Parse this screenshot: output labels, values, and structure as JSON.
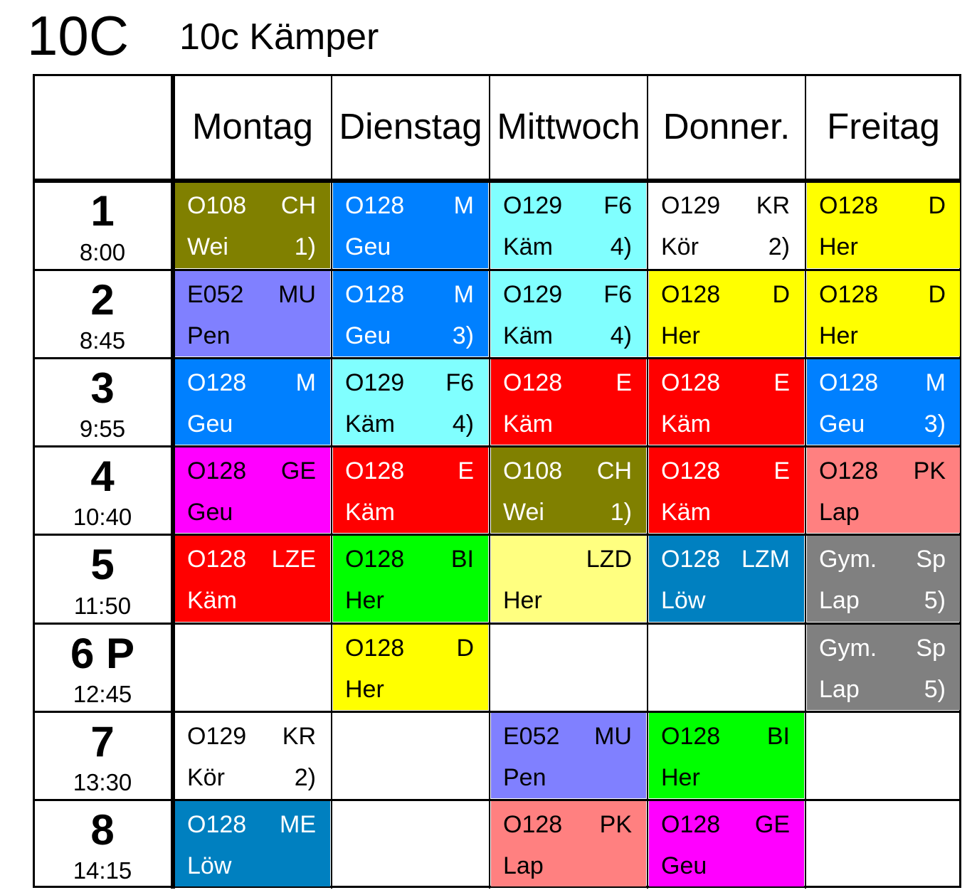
{
  "header": {
    "class_code": "10C",
    "class_name": "10c Kämper"
  },
  "days": [
    "Montag",
    "Dienstag",
    "Mittwoch",
    "Donner.",
    "Freitag"
  ],
  "periods": [
    {
      "label": "1",
      "time": "8:00"
    },
    {
      "label": "2",
      "time": "8:45"
    },
    {
      "label": "3",
      "time": "9:55"
    },
    {
      "label": "4",
      "time": "10:40"
    },
    {
      "label": "5",
      "time": "11:50"
    },
    {
      "label": "6 P",
      "time": "12:45"
    },
    {
      "label": "7",
      "time": "13:30"
    },
    {
      "label": "8",
      "time": "14:15"
    }
  ],
  "schedule": [
    [
      {
        "room": "O108",
        "subject": "CH",
        "teacher": "Wei",
        "note": "1)",
        "color": "#808000",
        "text_color": "#ffffff"
      },
      {
        "room": "O128",
        "subject": "M",
        "teacher": "Geu",
        "note": "",
        "color": "#0080ff",
        "text_color": "#ffffff"
      },
      {
        "room": "O129",
        "subject": "F6",
        "teacher": "Käm",
        "note": "4)",
        "color": "#80ffff",
        "text_color": "#000000"
      },
      {
        "room": "O129",
        "subject": "KR",
        "teacher": "Kör",
        "note": "2)",
        "color": "#ffffff",
        "text_color": "#000000"
      },
      {
        "room": "O128",
        "subject": "D",
        "teacher": "Her",
        "note": "",
        "color": "#ffff00",
        "text_color": "#000000"
      }
    ],
    [
      {
        "room": "E052",
        "subject": "MU",
        "teacher": "Pen",
        "note": "",
        "color": "#8080ff",
        "text_color": "#000000"
      },
      {
        "room": "O128",
        "subject": "M",
        "teacher": "Geu",
        "note": "3)",
        "color": "#0080ff",
        "text_color": "#ffffff"
      },
      {
        "room": "O129",
        "subject": "F6",
        "teacher": "Käm",
        "note": "4)",
        "color": "#80ffff",
        "text_color": "#000000"
      },
      {
        "room": "O128",
        "subject": "D",
        "teacher": "Her",
        "note": "",
        "color": "#ffff00",
        "text_color": "#000000"
      },
      {
        "room": "O128",
        "subject": "D",
        "teacher": "Her",
        "note": "",
        "color": "#ffff00",
        "text_color": "#000000"
      }
    ],
    [
      {
        "room": "O128",
        "subject": "M",
        "teacher": "Geu",
        "note": "",
        "color": "#0080ff",
        "text_color": "#ffffff"
      },
      {
        "room": "O129",
        "subject": "F6",
        "teacher": "Käm",
        "note": "4)",
        "color": "#80ffff",
        "text_color": "#000000"
      },
      {
        "room": "O128",
        "subject": "E",
        "teacher": "Käm",
        "note": "",
        "color": "#ff0000",
        "text_color": "#ffffff"
      },
      {
        "room": "O128",
        "subject": "E",
        "teacher": "Käm",
        "note": "",
        "color": "#ff0000",
        "text_color": "#ffffff"
      },
      {
        "room": "O128",
        "subject": "M",
        "teacher": "Geu",
        "note": "3)",
        "color": "#0080ff",
        "text_color": "#ffffff"
      }
    ],
    [
      {
        "room": "O128",
        "subject": "GE",
        "teacher": "Geu",
        "note": "",
        "color": "#ff00ff",
        "text_color": "#000000"
      },
      {
        "room": "O128",
        "subject": "E",
        "teacher": "Käm",
        "note": "",
        "color": "#ff0000",
        "text_color": "#ffffff"
      },
      {
        "room": "O108",
        "subject": "CH",
        "teacher": "Wei",
        "note": "1)",
        "color": "#808000",
        "text_color": "#ffffff"
      },
      {
        "room": "O128",
        "subject": "E",
        "teacher": "Käm",
        "note": "",
        "color": "#ff0000",
        "text_color": "#ffffff"
      },
      {
        "room": "O128",
        "subject": "PK",
        "teacher": "Lap",
        "note": "",
        "color": "#ff8080",
        "text_color": "#000000"
      }
    ],
    [
      {
        "room": "O128",
        "subject": "LZE",
        "teacher": "Käm",
        "note": "",
        "color": "#ff0000",
        "text_color": "#ffffff"
      },
      {
        "room": "O128",
        "subject": "BI",
        "teacher": "Her",
        "note": "",
        "color": "#00ff00",
        "text_color": "#000000"
      },
      {
        "room": "",
        "subject": "LZD",
        "teacher": "Her",
        "note": "",
        "color": "#ffff80",
        "text_color": "#000000"
      },
      {
        "room": "O128",
        "subject": "LZM",
        "teacher": "Löw",
        "note": "",
        "color": "#0080c0",
        "text_color": "#ffffff"
      },
      {
        "room": "Gym.",
        "subject": "Sp",
        "teacher": "Lap",
        "note": "5)",
        "color": "#808080",
        "text_color": "#ffffff"
      }
    ],
    [
      null,
      {
        "room": "O128",
        "subject": "D",
        "teacher": "Her",
        "note": "",
        "color": "#ffff00",
        "text_color": "#000000"
      },
      null,
      null,
      {
        "room": "Gym.",
        "subject": "Sp",
        "teacher": "Lap",
        "note": "5)",
        "color": "#808080",
        "text_color": "#ffffff"
      }
    ],
    [
      {
        "room": "O129",
        "subject": "KR",
        "teacher": "Kör",
        "note": "2)",
        "color": "#ffffff",
        "text_color": "#000000"
      },
      null,
      {
        "room": "E052",
        "subject": "MU",
        "teacher": "Pen",
        "note": "",
        "color": "#8080ff",
        "text_color": "#000000"
      },
      {
        "room": "O128",
        "subject": "BI",
        "teacher": "Her",
        "note": "",
        "color": "#00ff00",
        "text_color": "#000000"
      },
      null
    ],
    [
      {
        "room": "O128",
        "subject": "ME",
        "teacher": "Löw",
        "note": "",
        "color": "#0080c0",
        "text_color": "#ffffff"
      },
      null,
      {
        "room": "O128",
        "subject": "PK",
        "teacher": "Lap",
        "note": "",
        "color": "#ff8080",
        "text_color": "#000000"
      },
      {
        "room": "O128",
        "subject": "GE",
        "teacher": "Geu",
        "note": "",
        "color": "#ff00ff",
        "text_color": "#000000"
      },
      null
    ]
  ]
}
